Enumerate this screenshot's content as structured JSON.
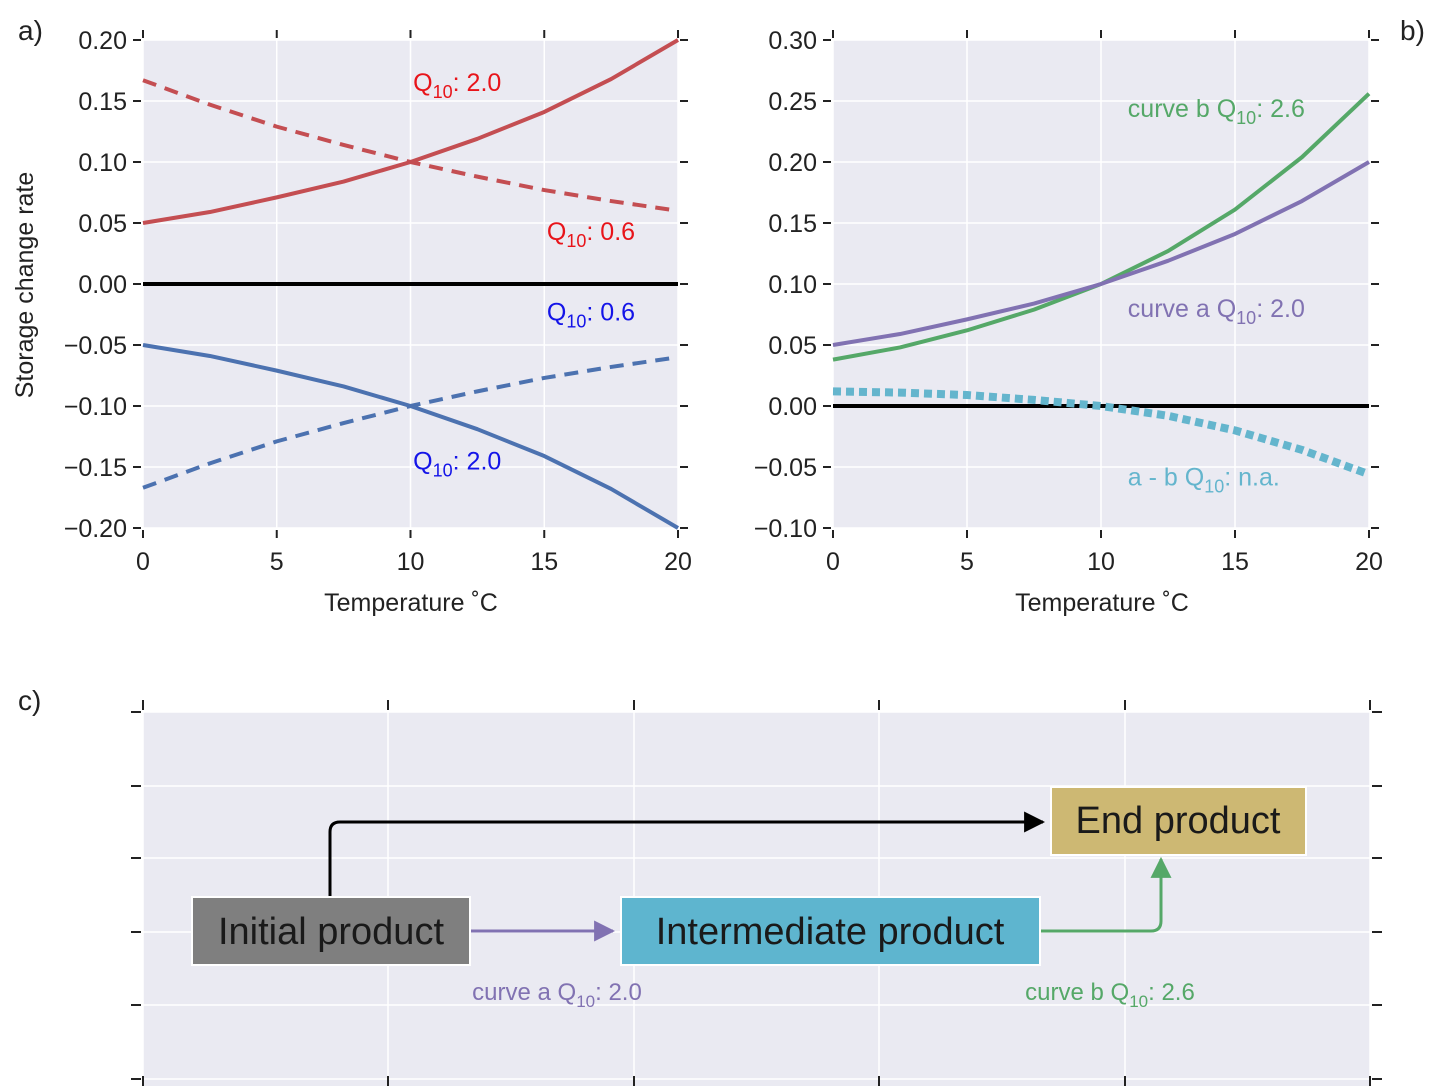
{
  "colors": {
    "axes_bg": "#eaeaf2",
    "grid": "#ffffff",
    "red": "#c44e52",
    "blue": "#4c72b0",
    "green": "#55a868",
    "purple": "#8172b2",
    "cyan": "#64b5cd",
    "black": "#000000",
    "text_red": "#e8141a",
    "text_blue": "#1414e8",
    "initial_box": "#7f7f7f",
    "intermediate_box": "#5eb5cf",
    "end_box": "#cdb873"
  },
  "panel_labels": {
    "a": "a)",
    "b": "b)",
    "c": "c)"
  },
  "chart_data": [
    {
      "panel": "a",
      "type": "line",
      "xlabel": "Temperature  ˚C",
      "ylabel": "Storage change rate",
      "xlim": [
        0,
        20
      ],
      "ylim": [
        -0.2,
        0.2
      ],
      "xticks": [
        "0",
        "5",
        "10",
        "15",
        "20"
      ],
      "yticks": [
        "0.20",
        "0.15",
        "0.10",
        "0.05",
        "0.00",
        "−0.05",
        "−0.10",
        "−0.15",
        "−0.20"
      ],
      "grid": true,
      "x": [
        0,
        2.5,
        5,
        7.5,
        10,
        12.5,
        15,
        17.5,
        20
      ],
      "series": [
        {
          "color": "red",
          "style": "solid",
          "values": [
            0.05,
            0.059,
            0.071,
            0.084,
            0.1,
            0.119,
            0.141,
            0.168,
            0.2
          ]
        },
        {
          "color": "red",
          "style": "dashed",
          "values": [
            0.167,
            0.147,
            0.129,
            0.114,
            0.1,
            0.088,
            0.077,
            0.068,
            0.06
          ]
        },
        {
          "color": "black",
          "style": "solid",
          "values": [
            0,
            0,
            0,
            0,
            0,
            0,
            0,
            0,
            0
          ]
        },
        {
          "color": "blue",
          "style": "solid",
          "values": [
            -0.05,
            -0.059,
            -0.071,
            -0.084,
            -0.1,
            -0.119,
            -0.141,
            -0.168,
            -0.2
          ]
        },
        {
          "color": "blue",
          "style": "dashed",
          "values": [
            -0.167,
            -0.147,
            -0.129,
            -0.114,
            -0.1,
            -0.088,
            -0.077,
            -0.068,
            -0.06
          ]
        }
      ],
      "annotations": [
        {
          "prefix": "Q",
          "sub": "10",
          "suffix": ": 2.0",
          "color": "text_red",
          "x": 10.1,
          "y": 0.158
        },
        {
          "prefix": "Q",
          "sub": "10",
          "suffix": ": 0.6",
          "color": "text_red",
          "x": 15.1,
          "y": 0.036
        },
        {
          "prefix": "Q",
          "sub": "10",
          "suffix": ": 0.6",
          "color": "text_blue",
          "x": 15.1,
          "y": -0.03
        },
        {
          "prefix": "Q",
          "sub": "10",
          "suffix": ": 2.0",
          "color": "text_blue",
          "x": 10.1,
          "y": -0.152
        }
      ]
    },
    {
      "panel": "b",
      "type": "line",
      "xlabel": "Temperature  ˚C",
      "ylabel": "",
      "xlim": [
        0,
        20
      ],
      "ylim": [
        -0.1,
        0.3
      ],
      "xticks": [
        "0",
        "5",
        "10",
        "15",
        "20"
      ],
      "yticks": [
        "0.30",
        "0.25",
        "0.20",
        "0.15",
        "0.10",
        "0.05",
        "0.00",
        "−0.05",
        "−0.10"
      ],
      "grid": true,
      "x": [
        0,
        2.5,
        5,
        7.5,
        10,
        12.5,
        15,
        17.5,
        20
      ],
      "series": [
        {
          "color": "green",
          "style": "solid",
          "values": [
            0.038,
            0.048,
            0.062,
            0.079,
            0.1,
            0.127,
            0.161,
            0.204,
            0.256
          ]
        },
        {
          "color": "purple",
          "style": "solid",
          "values": [
            0.05,
            0.059,
            0.071,
            0.084,
            0.1,
            0.119,
            0.141,
            0.168,
            0.2
          ]
        },
        {
          "color": "black",
          "style": "solid",
          "values": [
            0,
            0,
            0,
            0,
            0,
            0,
            0,
            0,
            0
          ]
        },
        {
          "color": "cyan",
          "style": "dotted",
          "values": [
            0.012,
            0.011,
            0.009,
            0.005,
            0.0,
            -0.008,
            -0.02,
            -0.036,
            -0.056
          ]
        }
      ],
      "annotations": [
        {
          "prefix": "curve b Q",
          "sub": "10",
          "suffix": ": 2.6",
          "color": "green",
          "x": 11.0,
          "y": 0.237
        },
        {
          "prefix": "curve a Q",
          "sub": "10",
          "suffix": ": 2.0",
          "color": "purple",
          "x": 11.0,
          "y": 0.073
        },
        {
          "prefix": "a - b Q",
          "sub": "10",
          "suffix": ": n.a.",
          "color": "cyan",
          "x": 11.0,
          "y": -0.065
        }
      ]
    }
  ],
  "diagram": {
    "nodes": {
      "initial": "Initial product",
      "intermediate": "Intermediate product",
      "end": "End product"
    },
    "edge_labels": {
      "a": {
        "prefix": "curve a Q",
        "sub": "10",
        "suffix": ": 2.0"
      },
      "b": {
        "prefix": "curve b Q",
        "sub": "10",
        "suffix": ": 2.6"
      }
    }
  }
}
